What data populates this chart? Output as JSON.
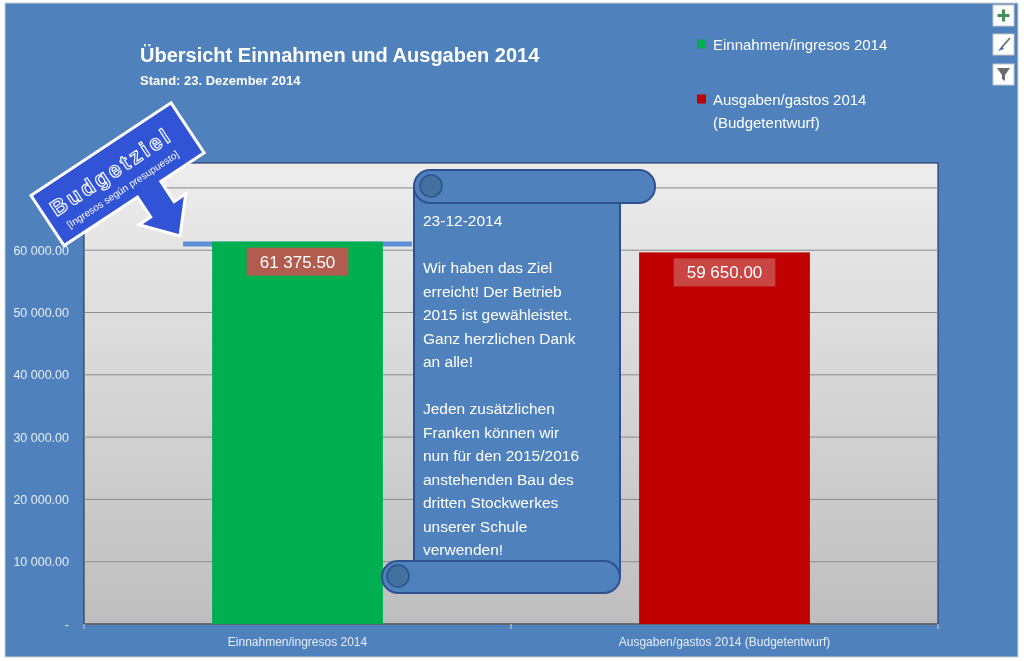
{
  "chart_data": {
    "type": "bar",
    "title": "Übersicht Einnahmen und Ausgaben 2014",
    "subtitle": "Stand: 23. Dezember 2014",
    "categories": [
      "Einnahmen/ingresos 2014",
      "Ausgaben/gastos 2014 (Budgetentwurf)"
    ],
    "series": [
      {
        "name": "Einnahmen/ingresos 2014",
        "color": "#00b050",
        "values": [
          61375.5,
          null
        ],
        "value_labels": [
          "61 375.50",
          null
        ]
      },
      {
        "name": "Ausgaben/gastos 2014 (Budgetentwurf)",
        "color": "#c00000",
        "values": [
          null,
          59650
        ],
        "value_labels": [
          null,
          "59 650.00"
        ]
      }
    ],
    "ylim": [
      0,
      74000
    ],
    "yticks": [
      {
        "value": 0,
        "label": "-"
      },
      {
        "value": 10000,
        "label": "10 000.00"
      },
      {
        "value": 20000,
        "label": "20 000.00"
      },
      {
        "value": 30000,
        "label": "30 000.00"
      },
      {
        "value": 40000,
        "label": "40 000.00"
      },
      {
        "value": 50000,
        "label": "50 000.00"
      },
      {
        "value": 60000,
        "label": "60 000.00"
      },
      {
        "value": 70000,
        "label": null
      }
    ],
    "grid": "y",
    "legend": "top right",
    "ref_lines": [
      {
        "axis": "y",
        "value": 61000,
        "label": "Budgetziel\n[Ingresos según presupuesto]",
        "color": "#5b8fd8"
      }
    ],
    "annotations": [
      "23-12-2014\n\nWir haben das Ziel\nerreicht! Der Betrieb\n2015 ist gewähleistet.\nGanz herzlichen Dank\nan alle!\n\nJeden zusätzlichen\nFranken können wir\nnun für den 2015/2016\nanstehenden Bau des\ndritten Stockwerkes\nunserer Schule\nverwenden!"
    ]
  }
}
